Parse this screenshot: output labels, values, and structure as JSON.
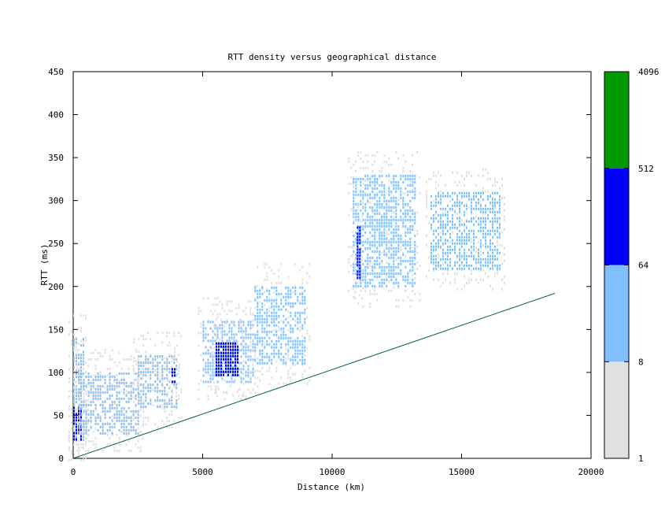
{
  "chart_data": {
    "type": "heatmap",
    "title": "RTT density versus geographical distance",
    "xlabel": "Distance (km)",
    "ylabel": "RTT (ms)",
    "xlim": [
      0,
      20000
    ],
    "ylim": [
      0,
      450
    ],
    "x_ticks": [
      "0",
      "5000",
      "10000",
      "15000",
      "20000"
    ],
    "y_ticks": [
      "0",
      "50",
      "100",
      "150",
      "200",
      "250",
      "300",
      "350",
      "400",
      "450"
    ],
    "x_tick_values": [
      0,
      5000,
      10000,
      15000,
      20000
    ],
    "y_tick_values": [
      0,
      50,
      100,
      150,
      200,
      250,
      300,
      350,
      400,
      450
    ],
    "grid": false,
    "colorbar": {
      "scale": "log",
      "ticks": [
        "1",
        "8",
        "64",
        "512",
        "4096"
      ],
      "bands": [
        {
          "from": 1,
          "to": 8,
          "color": "#e0e0e0"
        },
        {
          "from": 8,
          "to": 64,
          "color": "#80bfff"
        },
        {
          "from": 64,
          "to": 512,
          "color": "#0000ff"
        },
        {
          "from": 512,
          "to": 4096,
          "color": "#009900"
        }
      ]
    },
    "line_color": "#006633",
    "reference_line": {
      "name": "",
      "points": [
        [
          0,
          0
        ],
        [
          18600,
          192
        ]
      ]
    },
    "density_clusters": [
      {
        "x": [
          0,
          400
        ],
        "y": [
          20,
          140
        ],
        "level": "light"
      },
      {
        "x": [
          0,
          300
        ],
        "y": [
          20,
          60
        ],
        "level": "dark"
      },
      {
        "x": [
          200,
          2500
        ],
        "y": [
          30,
          100
        ],
        "level": "light"
      },
      {
        "x": [
          2500,
          4000
        ],
        "y": [
          60,
          120
        ],
        "level": "light"
      },
      {
        "x": [
          3800,
          3900
        ],
        "y": [
          90,
          105
        ],
        "level": "dark"
      },
      {
        "x": [
          5000,
          7000
        ],
        "y": [
          90,
          160
        ],
        "level": "light"
      },
      {
        "x": [
          5500,
          6400
        ],
        "y": [
          95,
          135
        ],
        "level": "dark"
      },
      {
        "x": [
          7000,
          9000
        ],
        "y": [
          110,
          200
        ],
        "level": "light"
      },
      {
        "x": [
          10800,
          13200
        ],
        "y": [
          200,
          330
        ],
        "level": "light"
      },
      {
        "x": [
          10950,
          11100
        ],
        "y": [
          210,
          270
        ],
        "level": "dark"
      },
      {
        "x": [
          13800,
          16500
        ],
        "y": [
          220,
          310
        ],
        "level": "light"
      }
    ]
  }
}
